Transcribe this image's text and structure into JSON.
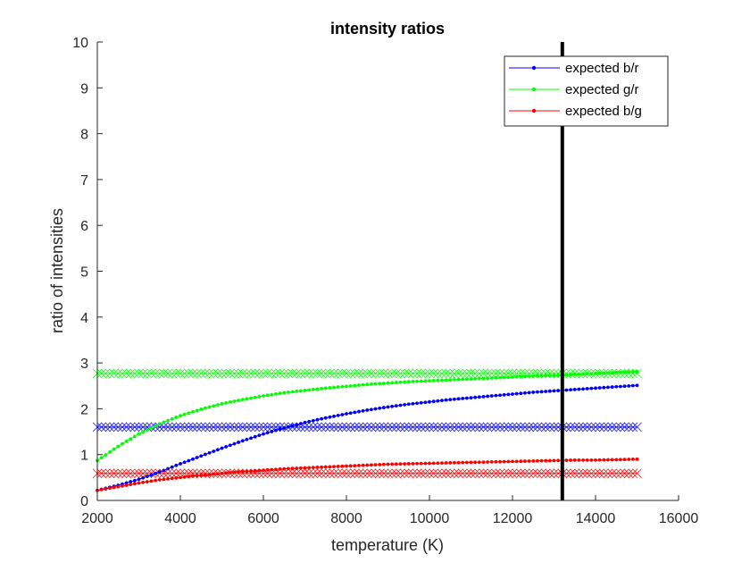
{
  "chart_data": {
    "type": "line",
    "title": "intensity ratios",
    "xlabel": "temperature (K)",
    "ylabel": "ratio of intensities",
    "xlim": [
      2000,
      16000
    ],
    "ylim": [
      0,
      10
    ],
    "xticks": [
      2000,
      4000,
      6000,
      8000,
      10000,
      12000,
      14000,
      16000
    ],
    "yticks": [
      0,
      1,
      2,
      3,
      4,
      5,
      6,
      7,
      8,
      9,
      10
    ],
    "legend_position": "top-right",
    "grid": false,
    "x": [
      2000,
      2500,
      3000,
      3500,
      4000,
      4500,
      5000,
      5500,
      6000,
      6500,
      7000,
      7500,
      8000,
      8500,
      9000,
      9500,
      10000,
      10500,
      11000,
      11500,
      12000,
      12500,
      13000,
      13500,
      14000,
      14500,
      15000
    ],
    "series": [
      {
        "name": "expected b/r",
        "color": "#0000ff",
        "marker": "dot",
        "values": [
          0.22,
          0.33,
          0.46,
          0.62,
          0.8,
          0.97,
          1.14,
          1.3,
          1.45,
          1.58,
          1.7,
          1.8,
          1.89,
          1.97,
          2.04,
          2.1,
          2.15,
          2.2,
          2.24,
          2.28,
          2.32,
          2.36,
          2.39,
          2.42,
          2.45,
          2.48,
          2.51
        ]
      },
      {
        "name": "expected g/r",
        "color": "#00ff00",
        "marker": "dot",
        "values": [
          0.87,
          1.18,
          1.45,
          1.67,
          1.85,
          1.99,
          2.11,
          2.2,
          2.28,
          2.35,
          2.4,
          2.45,
          2.49,
          2.53,
          2.56,
          2.59,
          2.61,
          2.63,
          2.65,
          2.67,
          2.69,
          2.71,
          2.73,
          2.75,
          2.77,
          2.79,
          2.81
        ]
      },
      {
        "name": "expected b/g",
        "color": "#ff0000",
        "marker": "dot",
        "values": [
          0.22,
          0.3,
          0.38,
          0.45,
          0.5,
          0.55,
          0.59,
          0.63,
          0.66,
          0.69,
          0.71,
          0.73,
          0.75,
          0.77,
          0.79,
          0.8,
          0.81,
          0.82,
          0.83,
          0.84,
          0.85,
          0.86,
          0.87,
          0.88,
          0.88,
          0.89,
          0.9
        ]
      }
    ],
    "reference_lines": [
      {
        "y": 2.77,
        "color": "#00ff00",
        "marker": "x",
        "x_range": [
          2000,
          15000
        ]
      },
      {
        "y": 1.6,
        "color": "#0000ff",
        "marker": "x",
        "x_range": [
          2000,
          15000
        ]
      },
      {
        "y": 0.59,
        "color": "#ff0000",
        "marker": "x",
        "x_range": [
          2000,
          15000
        ]
      }
    ],
    "vertical_line": {
      "x": 13200,
      "color": "#000000"
    }
  }
}
